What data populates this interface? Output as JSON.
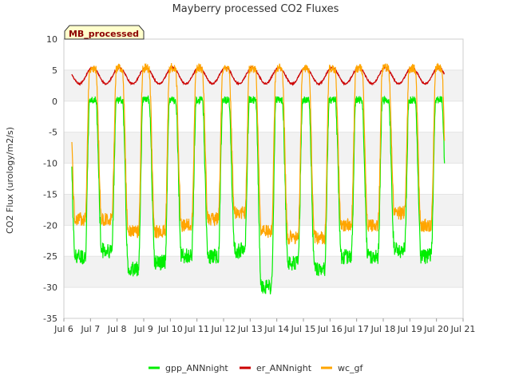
{
  "chart_data": {
    "type": "line",
    "title": "Mayberry processed CO2 Fluxes",
    "xlabel": "",
    "ylabel": "CO2 Flux (urology/m2/s)",
    "badge": "MB_processed",
    "xlim": [
      0,
      15
    ],
    "ylim": [
      -35,
      10
    ],
    "x_ticks": [
      {
        "pos": 0,
        "label": "Jul 6"
      },
      {
        "pos": 1,
        "label": "Jul 7"
      },
      {
        "pos": 2,
        "label": "Jul 8"
      },
      {
        "pos": 3,
        "label": "Jul 9"
      },
      {
        "pos": 4,
        "label": "Jul 10"
      },
      {
        "pos": 5,
        "label": "Jul 11"
      },
      {
        "pos": 6,
        "label": "Jul 12"
      },
      {
        "pos": 7,
        "label": "Jul 13"
      },
      {
        "pos": 8,
        "label": "Jul 14"
      },
      {
        "pos": 9,
        "label": "Jul 15"
      },
      {
        "pos": 10,
        "label": "Jul 16"
      },
      {
        "pos": 11,
        "label": "Jul 17"
      },
      {
        "pos": 12,
        "label": "Jul 18"
      },
      {
        "pos": 13,
        "label": "Jul 19"
      },
      {
        "pos": 14,
        "label": "Jul 20"
      },
      {
        "pos": 15,
        "label": "Jul 21"
      }
    ],
    "y_ticks": [
      10,
      5,
      0,
      -5,
      -10,
      -15,
      -20,
      -25,
      -30,
      -35
    ],
    "x_start": 0.3,
    "x_end": 14.3,
    "daily_min": {
      "gpp_ANNnight": [
        -25,
        -24,
        -27,
        -26,
        -25,
        -25,
        -24,
        -30,
        -26,
        -27,
        -25,
        -25,
        -24,
        -25
      ],
      "wc_gf": [
        -19,
        -19,
        -21,
        -21,
        -20,
        -19,
        -18,
        -21,
        -22,
        -22,
        -20,
        -20,
        -18,
        -20
      ]
    },
    "series": [
      {
        "name": "gpp_ANNnight",
        "color": "#00ee00"
      },
      {
        "name": "er_ANNnight",
        "color": "#cc0000"
      },
      {
        "name": "wc_gf",
        "color": "#ffa500"
      }
    ]
  }
}
